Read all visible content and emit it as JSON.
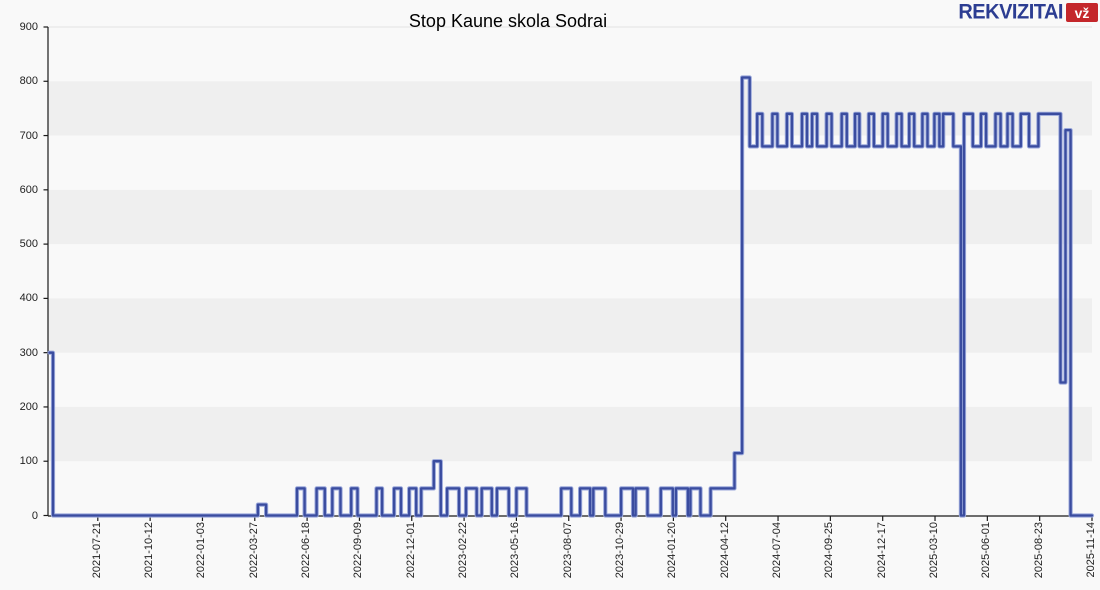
{
  "page": {
    "background": "#f9f9f9"
  },
  "header": {
    "title": "Stop Kaune skola Sodrai"
  },
  "logo": {
    "brand": "REKVIZITAI",
    "badge": "vž",
    "brand_color": "#2c3d92",
    "badge_bg": "#c4272b",
    "badge_text_color": "#ffffff"
  },
  "colors": {
    "band": "#efefef",
    "plot_bg": "#f9f9f9",
    "axis": "#1a1a1a",
    "tick_label": "#222222",
    "top_gridline": "#e2e2e2",
    "line_core": "#3a4c9f",
    "line_halo": "#9aa8db"
  },
  "chart_data": {
    "type": "line",
    "step": true,
    "title": "Stop Kaune skola Sodrai",
    "xlabel": "",
    "ylabel": "",
    "ylim": [
      0,
      900
    ],
    "yticks": [
      0,
      100,
      200,
      300,
      400,
      500,
      600,
      700,
      800,
      900
    ],
    "grid": "alternating-horizontal-bands",
    "legend_position": "none",
    "x_domain": [
      "2021-05-03",
      "2025-11-14"
    ],
    "xticks": [
      "2021-07-21",
      "2021-10-12",
      "2022-01-03",
      "2022-03-27",
      "2022-06-18",
      "2022-09-09",
      "2022-12-01",
      "2023-02-22",
      "2023-05-16",
      "2023-08-07",
      "2023-10-29",
      "2024-01-20",
      "2024-04-12",
      "2024-07-04",
      "2024-09-25",
      "2024-12-17",
      "2025-03-10",
      "2025-06-01",
      "2025-08-23",
      "2025-11-14"
    ],
    "series": [
      {
        "name": "Stop Kaune skola Sodrai",
        "color": "#3a4c9f",
        "points": [
          [
            "2021-05-05",
            300
          ],
          [
            "2021-05-11",
            0
          ],
          [
            "2022-04-01",
            20
          ],
          [
            "2022-04-14",
            0
          ],
          [
            "2022-06-02",
            50
          ],
          [
            "2022-06-14",
            0
          ],
          [
            "2022-07-03",
            50
          ],
          [
            "2022-07-16",
            0
          ],
          [
            "2022-07-28",
            50
          ],
          [
            "2022-08-10",
            0
          ],
          [
            "2022-08-27",
            50
          ],
          [
            "2022-09-06",
            0
          ],
          [
            "2022-10-06",
            50
          ],
          [
            "2022-10-15",
            0
          ],
          [
            "2022-11-03",
            50
          ],
          [
            "2022-11-14",
            0
          ],
          [
            "2022-11-27",
            50
          ],
          [
            "2022-12-08",
            0
          ],
          [
            "2022-12-16",
            50
          ],
          [
            "2023-01-05",
            100
          ],
          [
            "2023-01-16",
            0
          ],
          [
            "2023-01-26",
            50
          ],
          [
            "2023-02-14",
            0
          ],
          [
            "2023-02-25",
            50
          ],
          [
            "2023-03-14",
            0
          ],
          [
            "2023-03-22",
            50
          ],
          [
            "2023-04-07",
            0
          ],
          [
            "2023-04-15",
            50
          ],
          [
            "2023-05-04",
            0
          ],
          [
            "2023-05-16",
            50
          ],
          [
            "2023-06-01",
            0
          ],
          [
            "2023-07-26",
            50
          ],
          [
            "2023-08-11",
            0
          ],
          [
            "2023-08-25",
            50
          ],
          [
            "2023-09-10",
            0
          ],
          [
            "2023-09-15",
            50
          ],
          [
            "2023-10-04",
            0
          ],
          [
            "2023-10-29",
            50
          ],
          [
            "2023-11-17",
            0
          ],
          [
            "2023-11-21",
            50
          ],
          [
            "2023-12-10",
            0
          ],
          [
            "2023-12-31",
            50
          ],
          [
            "2024-01-19",
            0
          ],
          [
            "2024-01-24",
            50
          ],
          [
            "2024-02-12",
            0
          ],
          [
            "2024-02-16",
            50
          ],
          [
            "2024-03-03",
            0
          ],
          [
            "2024-03-19",
            50
          ],
          [
            "2024-04-26",
            115
          ],
          [
            "2024-05-08",
            807
          ],
          [
            "2024-05-20",
            680
          ],
          [
            "2024-06-01",
            740
          ],
          [
            "2024-06-09",
            680
          ],
          [
            "2024-06-25",
            740
          ],
          [
            "2024-07-03",
            680
          ],
          [
            "2024-07-18",
            740
          ],
          [
            "2024-07-26",
            680
          ],
          [
            "2024-08-11",
            740
          ],
          [
            "2024-08-19",
            680
          ],
          [
            "2024-08-27",
            740
          ],
          [
            "2024-09-04",
            680
          ],
          [
            "2024-09-19",
            740
          ],
          [
            "2024-09-27",
            680
          ],
          [
            "2024-10-13",
            740
          ],
          [
            "2024-10-21",
            680
          ],
          [
            "2024-11-03",
            740
          ],
          [
            "2024-11-10",
            680
          ],
          [
            "2024-11-25",
            740
          ],
          [
            "2024-12-03",
            680
          ],
          [
            "2024-12-17",
            740
          ],
          [
            "2024-12-25",
            680
          ],
          [
            "2025-01-08",
            740
          ],
          [
            "2025-01-16",
            680
          ],
          [
            "2025-01-28",
            740
          ],
          [
            "2025-02-05",
            680
          ],
          [
            "2025-02-18",
            740
          ],
          [
            "2025-02-26",
            680
          ],
          [
            "2025-03-09",
            740
          ],
          [
            "2025-03-17",
            680
          ],
          [
            "2025-03-23",
            740
          ],
          [
            "2025-04-08",
            680
          ],
          [
            "2025-04-20",
            0
          ],
          [
            "2025-04-25",
            740
          ],
          [
            "2025-05-09",
            680
          ],
          [
            "2025-05-22",
            740
          ],
          [
            "2025-05-30",
            680
          ],
          [
            "2025-06-14",
            740
          ],
          [
            "2025-06-22",
            680
          ],
          [
            "2025-07-03",
            740
          ],
          [
            "2025-07-11",
            680
          ],
          [
            "2025-07-24",
            740
          ],
          [
            "2025-08-06",
            680
          ],
          [
            "2025-08-21",
            740
          ],
          [
            "2025-09-25",
            245
          ],
          [
            "2025-10-03",
            710
          ],
          [
            "2025-10-11",
            0
          ],
          [
            "2025-11-14",
            0
          ]
        ]
      }
    ]
  }
}
